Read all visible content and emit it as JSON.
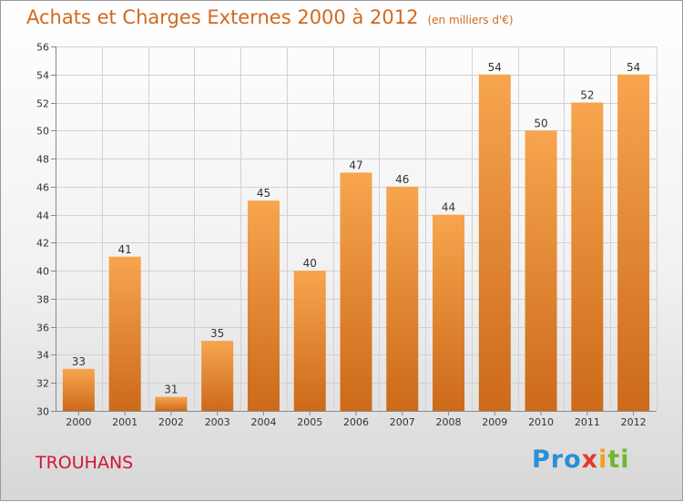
{
  "header": {
    "title": "Achats et Charges Externes 2000 à 2012",
    "unit": "(en milliers d'€)"
  },
  "footer": {
    "place": "TROUHANS",
    "logo": [
      "Pro",
      "x",
      "i",
      "ti"
    ]
  },
  "colors": {
    "bar_light": "#f7a54e",
    "bar_dark": "#cc6a1a",
    "title": "#d2691e",
    "place": "#d2143a"
  },
  "chart_data": {
    "type": "bar",
    "categories": [
      "2000",
      "2001",
      "2002",
      "2003",
      "2004",
      "2005",
      "2006",
      "2007",
      "2008",
      "2009",
      "2010",
      "2011",
      "2012"
    ],
    "values": [
      33,
      41,
      31,
      35,
      45,
      40,
      47,
      46,
      44,
      54,
      50,
      52,
      54
    ],
    "title": "Achats et Charges Externes 2000 à 2012",
    "ylim": [
      30,
      56
    ],
    "yticks": [
      30,
      32,
      34,
      36,
      38,
      40,
      42,
      44,
      46,
      48,
      50,
      52,
      54,
      56
    ],
    "grid": true
  }
}
